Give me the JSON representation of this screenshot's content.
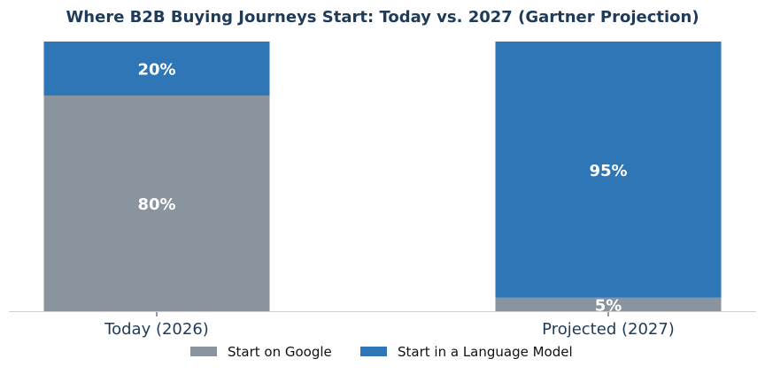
{
  "chart_data": {
    "type": "bar",
    "stacked": true,
    "title": "Where B2B Buying Journeys Start: Today vs. 2027 (Gartner Projection)",
    "categories": [
      "Today (2026)",
      "Projected (2027)"
    ],
    "series": [
      {
        "name": "Start on Google",
        "values": [
          80,
          5
        ],
        "color": "#8a949f"
      },
      {
        "name": "Start in a Language Model",
        "values": [
          20,
          95
        ],
        "color": "#2f76b7"
      }
    ],
    "data_labels": [
      [
        "80%",
        "5%"
      ],
      [
        "20%",
        "95%"
      ]
    ],
    "ylim": [
      0,
      100
    ],
    "grid": false,
    "legend": "bottom-center"
  }
}
